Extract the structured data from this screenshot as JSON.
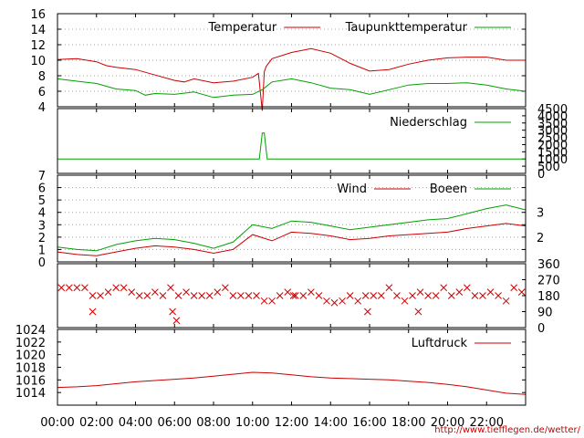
{
  "colors": {
    "red": "#cc0000",
    "green": "#00a000",
    "grid": "#a0a0a0",
    "frame": "#000000"
  },
  "source_link": "http://www.tiefflegen.de/wetter/",
  "time_axis": {
    "range_hours": [
      0,
      24
    ],
    "ticks": [
      {
        "h": 0,
        "label": "00:00"
      },
      {
        "h": 2,
        "label": "02:00"
      },
      {
        "h": 4,
        "label": "04:00"
      },
      {
        "h": 6,
        "label": "06:00"
      },
      {
        "h": 8,
        "label": "08:00"
      },
      {
        "h": 10,
        "label": "10:00"
      },
      {
        "h": 12,
        "label": "12:00"
      },
      {
        "h": 14,
        "label": "14:00"
      },
      {
        "h": 16,
        "label": "16:00"
      },
      {
        "h": 18,
        "label": "18:00"
      },
      {
        "h": 20,
        "label": "20:00"
      },
      {
        "h": 22,
        "label": "22:00"
      }
    ]
  },
  "chart_data": [
    {
      "id": "temperature",
      "type": "line",
      "ylim": [
        4,
        16
      ],
      "yticks": [
        4,
        6,
        8,
        10,
        12,
        14,
        16
      ],
      "grid": true,
      "legend": "top-right",
      "series": [
        {
          "name": "Temperatur",
          "color": "#cc0000",
          "x": [
            0,
            1,
            1.5,
            2,
            2.5,
            3,
            4,
            5,
            6,
            6.5,
            7,
            8,
            9,
            10,
            10.3,
            10.5,
            10.6,
            10.7,
            11,
            12,
            13,
            14,
            15,
            16,
            17,
            18,
            19,
            20,
            21,
            22,
            23,
            24
          ],
          "y": [
            10.1,
            10.2,
            10.0,
            9.8,
            9.3,
            9.1,
            8.8,
            8.1,
            7.4,
            7.2,
            7.6,
            7.1,
            7.3,
            7.8,
            8.3,
            3.5,
            8.5,
            9.2,
            10.2,
            11.0,
            11.5,
            10.9,
            9.6,
            8.6,
            8.8,
            9.5,
            10.0,
            10.3,
            10.4,
            10.4,
            10.0,
            10.0
          ]
        },
        {
          "name": "Taupunkttemperatur",
          "color": "#00a000",
          "x": [
            0,
            1,
            2,
            3,
            4,
            4.5,
            5,
            6,
            7,
            8,
            9,
            10,
            10.5,
            11,
            12,
            13,
            14,
            15,
            16,
            17,
            18,
            19,
            20,
            21,
            22,
            23,
            24
          ],
          "y": [
            7.6,
            7.3,
            7.0,
            6.3,
            6.1,
            5.5,
            5.7,
            5.6,
            5.9,
            5.2,
            5.5,
            5.6,
            6.2,
            7.2,
            7.6,
            7.1,
            6.4,
            6.2,
            5.6,
            6.2,
            6.8,
            7.0,
            7.0,
            7.1,
            6.8,
            6.3,
            6.0
          ]
        }
      ]
    },
    {
      "id": "precipitation",
      "type": "line",
      "ylim": [
        0,
        4500
      ],
      "yticks": [
        0,
        500,
        1000,
        1500,
        2000,
        2500,
        3000,
        3500,
        4000,
        4500
      ],
      "grid": false,
      "legend": "top-right",
      "series": [
        {
          "name": "Niederschlag",
          "color": "#00a000",
          "x": [
            0,
            10.35,
            10.5,
            10.6,
            10.75,
            24
          ],
          "y": [
            1000,
            1000,
            2800,
            2800,
            1000,
            1000
          ]
        }
      ]
    },
    {
      "id": "wind",
      "type": "line",
      "ylim": [
        0,
        7
      ],
      "yticks": [
        0,
        1,
        2,
        3,
        4,
        5,
        6,
        7
      ],
      "right_ticks": [
        {
          "v": 2,
          "label": "2"
        },
        {
          "v": 4,
          "label": "3"
        }
      ],
      "grid": true,
      "legend": "top-right",
      "series": [
        {
          "name": "Wind",
          "color": "#cc0000",
          "x": [
            0,
            1,
            2,
            3,
            4,
            5,
            6,
            7,
            8,
            9,
            10,
            11,
            12,
            13,
            14,
            15,
            16,
            17,
            18,
            19,
            20,
            21,
            22,
            23,
            24
          ],
          "y": [
            0.8,
            0.6,
            0.5,
            0.8,
            1.1,
            1.3,
            1.2,
            1.0,
            0.7,
            1.0,
            2.2,
            1.7,
            2.4,
            2.3,
            2.1,
            1.8,
            1.9,
            2.1,
            2.2,
            2.3,
            2.4,
            2.7,
            2.9,
            3.1,
            2.9
          ]
        },
        {
          "name": "Boeen",
          "color": "#00a000",
          "x": [
            0,
            1,
            2,
            3,
            4,
            5,
            6,
            7,
            8,
            9,
            10,
            11,
            12,
            13,
            14,
            15,
            16,
            17,
            18,
            19,
            20,
            21,
            22,
            23,
            24
          ],
          "y": [
            1.2,
            1.0,
            0.9,
            1.4,
            1.7,
            1.9,
            1.8,
            1.5,
            1.1,
            1.6,
            3.0,
            2.7,
            3.3,
            3.2,
            2.9,
            2.6,
            2.8,
            3.0,
            3.2,
            3.4,
            3.5,
            3.9,
            4.3,
            4.6,
            4.2
          ]
        }
      ]
    },
    {
      "id": "wind_direction",
      "type": "scatter",
      "ylim": [
        0,
        360
      ],
      "yticks": [
        0,
        90,
        180,
        270,
        360
      ],
      "grid": false,
      "series": [
        {
          "marker": "x",
          "color": "#cc0000",
          "x": [
            0.2,
            0.6,
            1.0,
            1.4,
            1.8,
            2.2,
            2.6,
            3.0,
            3.4,
            3.8,
            4.2,
            4.6,
            5.0,
            5.4,
            5.8,
            6.2,
            6.6,
            7.0,
            7.4,
            7.8,
            8.2,
            8.6,
            9.0,
            9.4,
            9.8,
            10.2,
            10.6,
            11.0,
            11.4,
            11.8,
            12.2,
            12.6,
            13.0,
            13.4,
            13.8,
            14.2,
            14.6,
            15.0,
            15.4,
            15.8,
            16.2,
            16.6,
            17.0,
            17.4,
            17.8,
            18.2,
            18.6,
            19.0,
            19.4,
            19.8,
            20.2,
            20.6,
            21.0,
            21.4,
            21.8,
            22.2,
            22.6,
            23.0,
            23.4,
            23.8,
            1.8,
            5.9,
            6.1,
            12.1,
            15.9,
            18.5
          ],
          "y": [
            225,
            225,
            225,
            225,
            180,
            180,
            200,
            225,
            225,
            200,
            180,
            180,
            200,
            180,
            225,
            180,
            200,
            180,
            180,
            180,
            200,
            225,
            180,
            180,
            180,
            180,
            150,
            150,
            180,
            200,
            180,
            180,
            200,
            180,
            150,
            140,
            150,
            180,
            150,
            180,
            180,
            180,
            225,
            180,
            150,
            180,
            200,
            180,
            180,
            225,
            180,
            200,
            225,
            180,
            180,
            200,
            180,
            150,
            225,
            200,
            90,
            90,
            40,
            180,
            90,
            90
          ]
        }
      ]
    },
    {
      "id": "pressure",
      "type": "line",
      "ylim": [
        1012,
        1024
      ],
      "yticks": [
        1014,
        1016,
        1018,
        1020,
        1022,
        1024
      ],
      "grid": false,
      "legend": "top-right",
      "series": [
        {
          "name": "Luftdruck",
          "color": "#cc0000",
          "x": [
            0,
            1,
            2,
            3,
            4,
            5,
            6,
            7,
            8,
            9,
            10,
            11,
            12,
            13,
            14,
            15,
            16,
            17,
            18,
            19,
            20,
            21,
            22,
            23,
            24
          ],
          "y": [
            1014.8,
            1014.9,
            1015.1,
            1015.4,
            1015.7,
            1015.9,
            1016.1,
            1016.3,
            1016.6,
            1016.9,
            1017.2,
            1017.1,
            1016.8,
            1016.5,
            1016.3,
            1016.2,
            1016.1,
            1016.0,
            1015.8,
            1015.6,
            1015.3,
            1014.9,
            1014.4,
            1013.9,
            1013.7
          ]
        }
      ]
    }
  ]
}
